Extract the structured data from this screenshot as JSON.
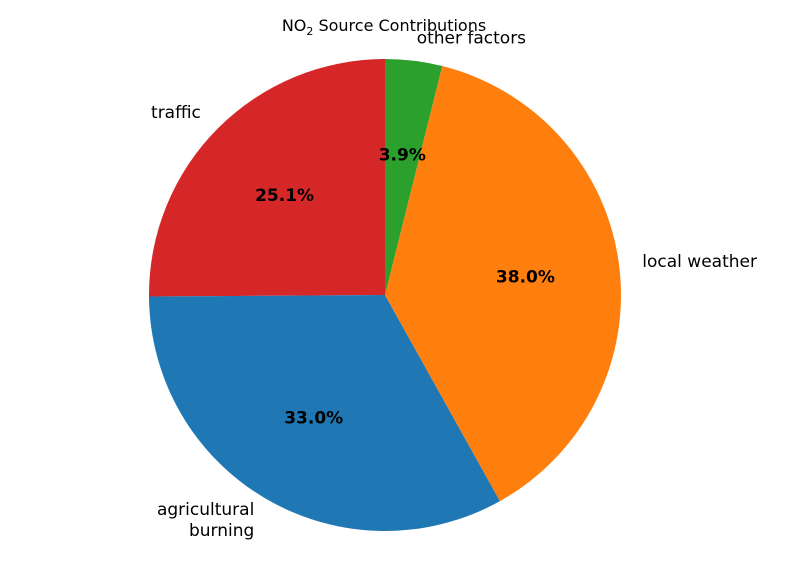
{
  "chart_data": {
    "type": "pie",
    "title": {
      "prefix": "NO",
      "subscript": "2",
      "suffix": " Source Contributions"
    },
    "slices": [
      {
        "label": "traffic",
        "value": 25.1,
        "pct_label": "25.1%",
        "color": "#d62728"
      },
      {
        "label": "agricultural burning",
        "value": 33.0,
        "pct_label": "33.0%",
        "color": "#1f77b4"
      },
      {
        "label": "local weather",
        "value": 38.0,
        "pct_label": "38.0%",
        "color": "#ff7f0e"
      },
      {
        "label": "other factors",
        "value": 3.9,
        "pct_label": "3.9%",
        "color": "#2ca02c"
      }
    ],
    "start_angle_deg": 90,
    "direction": "counterclockwise"
  }
}
